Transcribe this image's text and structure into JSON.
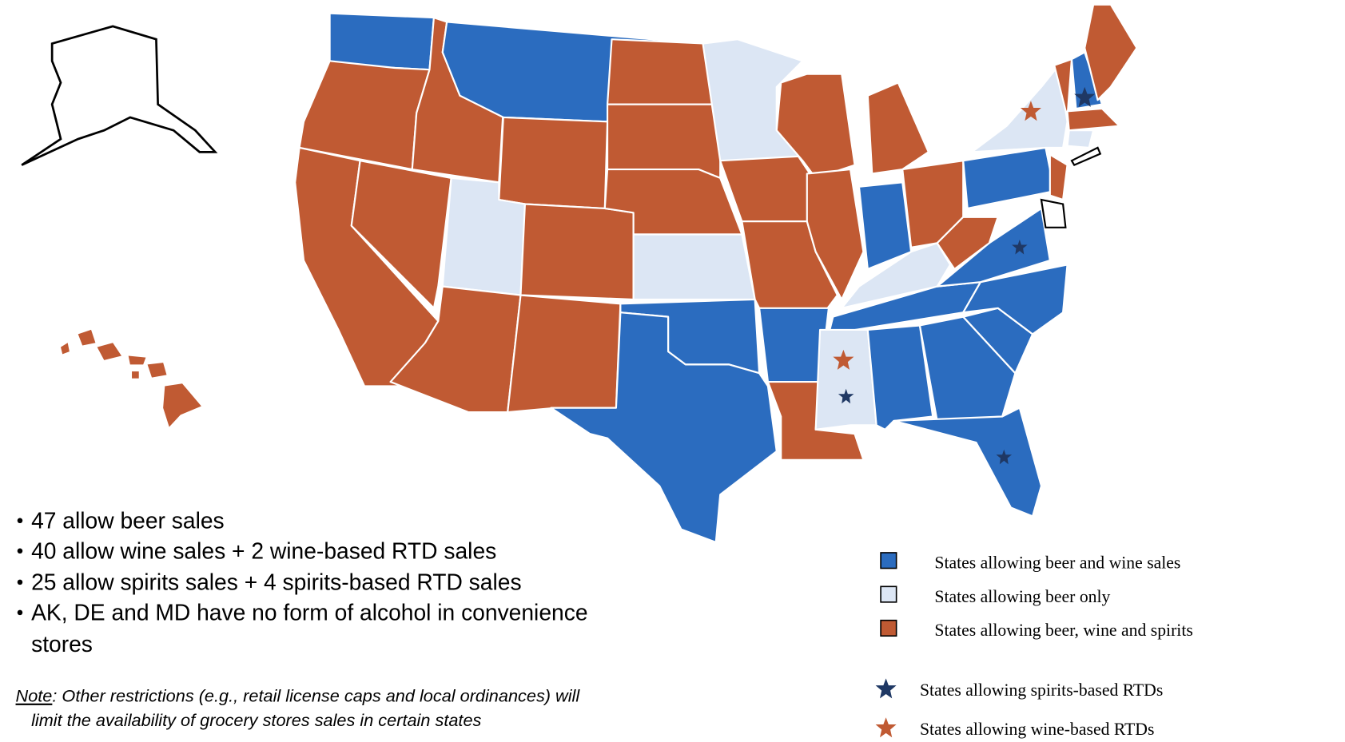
{
  "bullets": [
    [
      "47 allow beer sales"
    ],
    [
      "40 allow wine sales + 2 wine-based RTD sales"
    ],
    [
      "25 allow spirits sales + 4 spirits-based RTD sales"
    ],
    [
      "AK, DE and MD have no form of alcohol in convenience",
      "stores"
    ]
  ],
  "note": {
    "label": "Note",
    "lines": [
      ": Other restrictions (e.g., retail license caps and local ordinances) will",
      "limit the availability of grocery stores sales in certain states"
    ]
  },
  "legend": {
    "categories": [
      "States allowing beer and wine sales",
      "States allowing beer only",
      "States allowing beer, wine and spirits"
    ],
    "markers": [
      "States allowing spirits-based RTDs",
      "States allowing wine-based RTDs"
    ]
  }
}
